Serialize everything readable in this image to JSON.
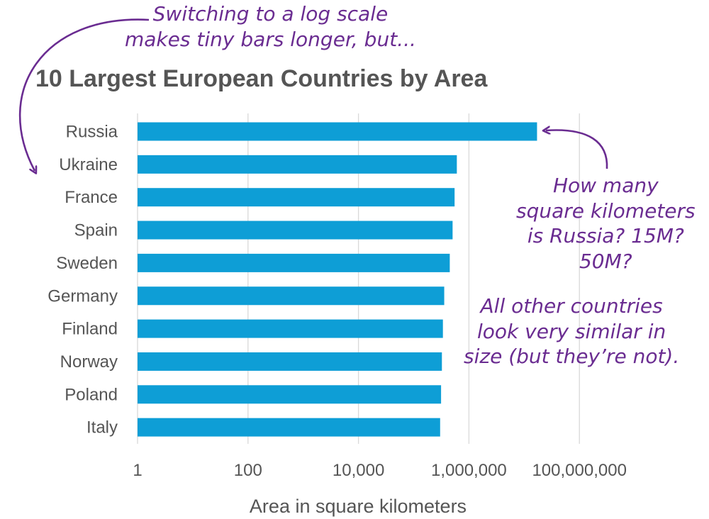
{
  "annotations": {
    "top": [
      "Switching to a log scale",
      "makes tiny bars longer, but..."
    ],
    "right": [
      "How many",
      "square kilometers",
      "is Russia? 15M?",
      "50M?"
    ],
    "bottom": [
      "All other countries",
      "look very similar in",
      "size (but they’re not)."
    ]
  },
  "colors": {
    "bar": "#0e9ed6",
    "grid": "#d9d9d9",
    "annotation": "#6a2c91",
    "text": "#555555"
  },
  "chart_data": {
    "type": "bar",
    "orientation": "horizontal",
    "title": "10 Largest European Countries by Area",
    "xlabel": "Area in square kilometers",
    "ylabel": "",
    "x_scale": "log10",
    "xlim": [
      1,
      1000000000
    ],
    "x_ticks": [
      1,
      100,
      10000,
      1000000,
      100000000
    ],
    "x_tick_labels": [
      "1",
      "100",
      "10,000",
      "1,000,000",
      "100,000,000"
    ],
    "grid": true,
    "legend": "none",
    "categories": [
      "Russia",
      "Ukraine",
      "France",
      "Spain",
      "Sweden",
      "Germany",
      "Finland",
      "Norway",
      "Poland",
      "Italy"
    ],
    "values": [
      17100000,
      604000,
      550000,
      506000,
      450000,
      357000,
      338000,
      324000,
      313000,
      301000
    ]
  }
}
